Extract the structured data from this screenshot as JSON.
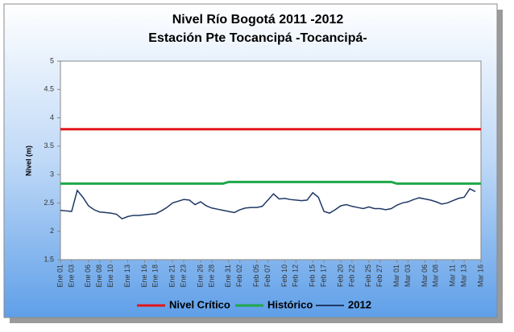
{
  "chart_data": {
    "type": "line",
    "title": "Nivel Río Bogotá 2011 -2012",
    "subtitle": "Estación Pte Tocancipá -Tocancipá-",
    "y_label": "Nivel (m)",
    "categories": [
      "Ene 01",
      null,
      "Ene 03",
      null,
      null,
      "Ene 06",
      null,
      "Ene 08",
      null,
      "Ene 10",
      null,
      null,
      "Ene 13",
      null,
      null,
      "Ene 16",
      null,
      "Ene 18",
      null,
      null,
      "Ene 21",
      null,
      "Ene 23",
      null,
      null,
      "Ene 26",
      null,
      "Ene 28",
      null,
      null,
      "Ene 31",
      null,
      "Feb 02",
      null,
      null,
      "Feb 05",
      null,
      "Feb 07",
      null,
      null,
      "Feb 10",
      null,
      "Feb 12",
      null,
      null,
      "Feb 15",
      null,
      "Feb 17",
      null,
      null,
      "Feb 20",
      null,
      "Feb 22",
      null,
      null,
      "Feb 25",
      null,
      "Feb 27",
      null,
      null,
      "Mar 01",
      null,
      "Mar 03",
      null,
      null,
      "Mar 06",
      null,
      "Mar 08",
      null,
      null,
      "Mar 11",
      null,
      "Mar 13",
      null,
      null,
      "Mar 16"
    ],
    "series": [
      {
        "name": "Nivel Crítico",
        "color": "#e3161c",
        "values": [
          3.8,
          3.8,
          3.8,
          3.8,
          3.8,
          3.8,
          3.8,
          3.8,
          3.8,
          3.8,
          3.8,
          3.8,
          3.8,
          3.8,
          3.8,
          3.8,
          3.8,
          3.8,
          3.8,
          3.8,
          3.8,
          3.8,
          3.8,
          3.8,
          3.8,
          3.8,
          3.8,
          3.8,
          3.8,
          3.8,
          3.8,
          3.8,
          3.8,
          3.8,
          3.8,
          3.8,
          3.8,
          3.8,
          3.8,
          3.8,
          3.8,
          3.8,
          3.8,
          3.8,
          3.8,
          3.8,
          3.8,
          3.8,
          3.8,
          3.8,
          3.8,
          3.8,
          3.8,
          3.8,
          3.8,
          3.8,
          3.8,
          3.8,
          3.8,
          3.8,
          3.8,
          3.8,
          3.8,
          3.8,
          3.8,
          3.8,
          3.8,
          3.8,
          3.8,
          3.8,
          3.8,
          3.8,
          3.8,
          3.8,
          3.8,
          3.8
        ]
      },
      {
        "name": "Histórico",
        "color": "#1fa84a",
        "values": [
          2.84,
          2.84,
          2.84,
          2.84,
          2.84,
          2.84,
          2.84,
          2.84,
          2.84,
          2.84,
          2.84,
          2.84,
          2.84,
          2.84,
          2.84,
          2.84,
          2.84,
          2.84,
          2.84,
          2.84,
          2.84,
          2.84,
          2.84,
          2.84,
          2.84,
          2.84,
          2.84,
          2.84,
          2.84,
          2.84,
          2.87,
          2.87,
          2.87,
          2.87,
          2.87,
          2.87,
          2.87,
          2.87,
          2.87,
          2.87,
          2.87,
          2.87,
          2.87,
          2.87,
          2.87,
          2.87,
          2.87,
          2.87,
          2.87,
          2.87,
          2.87,
          2.87,
          2.87,
          2.87,
          2.87,
          2.87,
          2.87,
          2.87,
          2.87,
          2.87,
          2.84,
          2.84,
          2.84,
          2.84,
          2.84,
          2.84,
          2.84,
          2.84,
          2.84,
          2.84,
          2.84,
          2.84,
          2.84,
          2.84,
          2.84,
          2.84
        ]
      },
      {
        "name": "2012",
        "color": "#1f3864",
        "values": [
          2.37,
          2.36,
          2.35,
          2.72,
          2.6,
          2.45,
          2.38,
          2.34,
          2.33,
          2.32,
          2.3,
          2.22,
          2.26,
          2.28,
          2.28,
          2.29,
          2.3,
          2.31,
          2.36,
          2.42,
          2.5,
          2.53,
          2.56,
          2.55,
          2.47,
          2.52,
          2.45,
          2.41,
          2.39,
          2.37,
          2.35,
          2.33,
          2.38,
          2.41,
          2.42,
          2.42,
          2.44,
          2.55,
          2.66,
          2.57,
          2.58,
          2.56,
          2.55,
          2.54,
          2.55,
          2.68,
          2.6,
          2.35,
          2.32,
          2.38,
          2.45,
          2.47,
          2.44,
          2.42,
          2.4,
          2.43,
          2.4,
          2.4,
          2.38,
          2.4,
          2.46,
          2.5,
          2.52,
          2.56,
          2.59,
          2.57,
          2.55,
          2.52,
          2.48,
          2.5,
          2.54,
          2.58,
          2.6,
          2.75,
          2.7,
          null
        ]
      }
    ],
    "ylim": [
      1.5,
      5
    ],
    "yticks": [
      1.5,
      2,
      2.5,
      3,
      3.5,
      4,
      4.5,
      5
    ],
    "grid": false,
    "legend": "bottom"
  }
}
